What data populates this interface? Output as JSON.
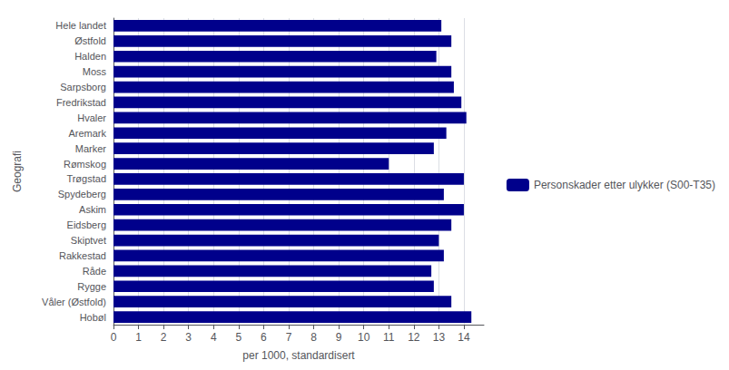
{
  "chart_data": {
    "type": "bar",
    "orientation": "horizontal",
    "categories": [
      "Hele landet",
      "Østfold",
      "Halden",
      "Moss",
      "Sarpsborg",
      "Fredrikstad",
      "Hvaler",
      "Aremark",
      "Marker",
      "Rømskog",
      "Trøgstad",
      "Spydeberg",
      "Askim",
      "Eidsberg",
      "Skiptvet",
      "Rakkestad",
      "Råde",
      "Rygge",
      "Våler (Østfold)",
      "Hobøl"
    ],
    "series": [
      {
        "name": "Personskader etter ulykker (S00-T35)",
        "color": "#00008B",
        "values": [
          13.1,
          13.5,
          12.9,
          13.5,
          13.6,
          13.9,
          14.1,
          13.3,
          12.8,
          11.0,
          14.0,
          13.2,
          14.0,
          13.5,
          13.0,
          13.2,
          12.7,
          12.8,
          13.5,
          14.3
        ]
      }
    ],
    "xlabel": "per 1000, standardisert",
    "ylabel": "Geografi",
    "xlim": [
      0,
      14.8
    ],
    "xticks": [
      0,
      1,
      2,
      3,
      4,
      5,
      6,
      7,
      8,
      9,
      10,
      11,
      12,
      13,
      14
    ],
    "grid": true,
    "legend": "right"
  }
}
